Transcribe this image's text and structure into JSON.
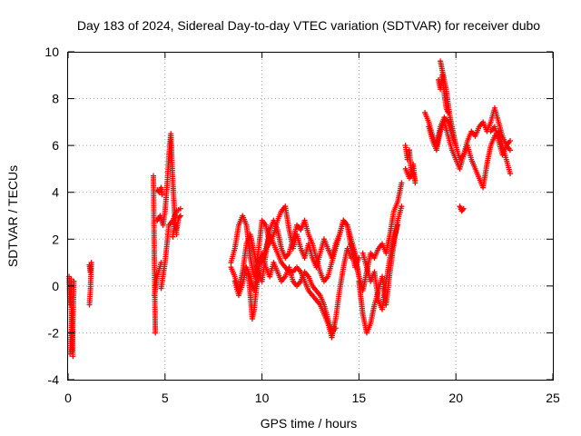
{
  "chart_data": {
    "type": "scatter",
    "title": "Day 183 of 2024, Sidereal Day-to-day VTEC variation (SDTVAR) for receiver dubo",
    "xlabel": "GPS time / hours",
    "ylabel": "SDTVAR / TECUs",
    "xlim": [
      0,
      25
    ],
    "ylim": [
      -4,
      10
    ],
    "xticks": [
      "0",
      "5",
      "10",
      "15",
      "20",
      "25"
    ],
    "yticks": [
      "-4",
      "-2",
      "0",
      "2",
      "4",
      "6",
      "8",
      "10"
    ],
    "grid": true,
    "marker": "+",
    "color": "#ff0000",
    "series": [
      {
        "name": "SDTVAR",
        "segments": [
          {
            "x": [
              0.05,
              0.1,
              0.15,
              0.2,
              0.25,
              0.3
            ],
            "y": [
              0.4,
              -0.8,
              0.3,
              -2.8,
              -1.5,
              0.2
            ]
          },
          {
            "x": [
              0.1,
              0.15,
              0.2,
              0.25
            ],
            "y": [
              -2.9,
              -2.2,
              -1.0,
              -3.0
            ]
          },
          {
            "x": [
              1.1,
              1.15,
              1.2,
              1.15,
              1.1
            ],
            "y": [
              0.9,
              0.6,
              1.0,
              -0.2,
              -0.8
            ]
          },
          {
            "x": [
              4.4,
              4.45,
              4.5
            ],
            "y": [
              4.7,
              1.2,
              -2.0
            ]
          },
          {
            "x": [
              4.45,
              4.6,
              4.8
            ],
            "y": [
              -0.4,
              0.4,
              1.0
            ]
          },
          {
            "x": [
              4.6,
              4.7,
              4.8,
              4.85
            ],
            "y": [
              4.1,
              4.0,
              4.2,
              3.9
            ]
          },
          {
            "x": [
              4.6,
              4.75,
              4.9,
              5.0,
              5.1,
              5.2,
              5.3,
              5.4,
              5.5,
              5.6
            ],
            "y": [
              2.8,
              3.0,
              2.6,
              3.2,
              4.2,
              5.6,
              6.5,
              4.5,
              3.0,
              2.2
            ]
          },
          {
            "x": [
              4.8,
              5.0,
              5.2,
              5.4,
              5.6,
              5.8
            ],
            "y": [
              -0.1,
              1.0,
              2.6,
              2.8,
              3.2,
              3.3
            ]
          },
          {
            "x": [
              5.4,
              5.5,
              5.6,
              5.7,
              5.8
            ],
            "y": [
              2.1,
              2.7,
              2.4,
              2.9,
              3.0
            ]
          },
          {
            "x": [
              8.4,
              8.6,
              8.8,
              9.0,
              9.2,
              9.4,
              9.6,
              9.8,
              10.0,
              10.2,
              10.4,
              10.6,
              10.8,
              11.0,
              11.2,
              11.4,
              11.6,
              11.8,
              12.0,
              12.2,
              12.4,
              12.6,
              12.8,
              13.0,
              13.2,
              13.4,
              13.6,
              13.8,
              14.0,
              14.2,
              14.4,
              14.6,
              14.8,
              15.0
            ],
            "y": [
              1.0,
              1.6,
              2.6,
              3.0,
              2.6,
              1.2,
              0.4,
              1.4,
              2.8,
              2.6,
              1.8,
              2.2,
              2.8,
              3.2,
              3.4,
              2.4,
              1.6,
              2.2,
              1.6,
              1.2,
              1.8,
              1.2,
              0.8,
              1.4,
              2.0,
              1.6,
              1.2,
              1.8,
              2.2,
              2.8,
              2.6,
              1.6,
              0.8,
              1.2
            ]
          },
          {
            "x": [
              8.4,
              8.6,
              8.8,
              9.0,
              9.2,
              9.4,
              9.6,
              9.8,
              10.0,
              10.2,
              10.4,
              10.6,
              10.8,
              11.0,
              11.2,
              11.4,
              11.6,
              11.8,
              12.0,
              12.2,
              12.4,
              12.6,
              12.8,
              13.0,
              13.2,
              13.4,
              13.6,
              13.8,
              14.0,
              14.2,
              14.4,
              14.6,
              14.8,
              15.0
            ],
            "y": [
              0.8,
              0.4,
              -0.2,
              0.6,
              1.8,
              2.2,
              1.4,
              0.6,
              0.2,
              1.4,
              2.4,
              2.8,
              2.4,
              1.6,
              1.2,
              1.4,
              2.0,
              2.6,
              2.4,
              2.8,
              2.2,
              1.8,
              1.2,
              0.6,
              0.2,
              0.4,
              1.0,
              1.6,
              2.2,
              2.8,
              2.6,
              2.0,
              1.4,
              0.4
            ]
          },
          {
            "x": [
              9.3,
              9.4,
              9.5,
              9.6,
              9.7,
              9.8,
              9.9,
              10.0,
              10.2,
              10.4,
              10.6,
              10.8,
              11.0,
              11.2,
              11.4,
              11.6,
              11.8,
              12.0,
              12.2,
              12.4,
              12.6,
              12.8,
              13.0,
              13.2,
              13.4,
              13.6,
              13.8,
              14.0,
              14.2,
              14.4,
              14.6
            ],
            "y": [
              0.5,
              -0.4,
              -1.4,
              -1.0,
              -0.2,
              0.4,
              1.2,
              1.0,
              1.6,
              2.2,
              1.8,
              1.4,
              1.0,
              0.8,
              0.6,
              0.6,
              0.8,
              0.6,
              0.2,
              -0.2,
              -0.4,
              -0.6,
              -0.8,
              -1.2,
              -1.6,
              -2.2,
              -1.4,
              -0.2,
              0.8,
              1.6,
              1.2
            ]
          },
          {
            "x": [
              8.6,
              8.8,
              9.0,
              9.2,
              9.4,
              9.6,
              9.8,
              10.0,
              10.2,
              10.4,
              10.6,
              10.8,
              11.0,
              11.2,
              11.4,
              11.6,
              11.8,
              12.0,
              12.2,
              12.4,
              12.6,
              12.8,
              13.0,
              13.2,
              13.4,
              13.6,
              13.8
            ],
            "y": [
              0.2,
              -0.4,
              0.1,
              0.8,
              0.4,
              -0.2,
              0.6,
              1.4,
              0.8,
              0.4,
              1.0,
              0.6,
              0.2,
              0.4,
              0.8,
              0.2,
              0.0,
              0.2,
              0.6,
              0.4,
              0.0,
              -0.2,
              -0.4,
              -0.8,
              -1.4,
              -2.0,
              -1.8
            ]
          },
          {
            "x": [
              14.6,
              14.8,
              15.0,
              15.2,
              15.4,
              15.6,
              15.8,
              16.0,
              16.2,
              16.4,
              16.6,
              16.8,
              17.0,
              17.2
            ],
            "y": [
              1.8,
              1.2,
              0.4,
              -0.2,
              0.6,
              1.4,
              1.2,
              1.6,
              1.8,
              1.4,
              2.2,
              3.2,
              3.6,
              4.4
            ]
          },
          {
            "x": [
              15.0,
              15.2,
              15.4,
              15.6,
              15.8,
              16.0,
              16.2,
              16.4,
              16.6,
              16.8,
              17.0,
              17.2
            ],
            "y": [
              0.2,
              -1.2,
              -2.0,
              -1.6,
              -0.8,
              -0.2,
              0.4,
              -0.8,
              0.6,
              1.8,
              2.8,
              3.4
            ]
          },
          {
            "x": [
              15.2,
              15.4,
              15.6,
              15.8,
              16.0,
              16.2,
              16.4,
              16.6,
              16.8,
              17.0
            ],
            "y": [
              1.4,
              0.8,
              0.2,
              0.6,
              -0.6,
              -1.0,
              0.2,
              1.2,
              2.0,
              2.6
            ]
          },
          {
            "x": [
              17.4,
              17.5,
              17.6,
              17.7,
              17.8,
              17.9
            ],
            "y": [
              6.0,
              5.4,
              5.8,
              4.8,
              5.2,
              4.4
            ]
          },
          {
            "x": [
              17.4,
              17.6,
              17.8,
              17.9
            ],
            "y": [
              5.0,
              4.6,
              4.8,
              4.5
            ]
          },
          {
            "x": [
              18.4,
              18.6,
              18.8,
              19.0,
              19.2,
              19.4,
              19.6,
              19.8,
              20.0,
              20.2,
              20.4,
              20.6,
              20.8,
              21.0,
              21.2,
              21.4,
              21.6,
              21.8,
              22.0,
              22.2,
              22.4,
              22.6,
              22.8
            ],
            "y": [
              7.4,
              7.0,
              6.4,
              6.0,
              6.8,
              7.2,
              7.0,
              6.4,
              6.0,
              5.4,
              5.6,
              6.2,
              6.6,
              6.4,
              6.8,
              7.0,
              6.6,
              7.0,
              7.6,
              7.0,
              6.4,
              6.0,
              5.8
            ]
          },
          {
            "x": [
              18.6,
              18.8,
              19.0,
              19.2,
              19.4,
              19.6,
              19.8,
              20.0,
              20.2,
              20.4,
              20.6,
              20.8,
              21.0,
              21.2,
              21.4,
              21.6,
              21.8,
              22.0,
              22.2,
              22.4,
              22.6,
              22.8
            ],
            "y": [
              6.8,
              6.2,
              5.8,
              6.6,
              7.0,
              6.4,
              5.8,
              5.4,
              5.0,
              5.6,
              6.0,
              5.4,
              5.0,
              4.6,
              4.2,
              5.2,
              6.0,
              6.4,
              6.6,
              6.0,
              5.4,
              4.8
            ]
          },
          {
            "x": [
              19.2,
              19.3,
              19.4,
              19.5,
              19.6,
              19.7,
              19.8,
              19.9,
              20.0
            ],
            "y": [
              9.6,
              9.2,
              8.8,
              8.4,
              7.8,
              7.2,
              6.8,
              6.4,
              6.0
            ]
          },
          {
            "x": [
              19.1,
              19.2,
              19.3,
              19.4,
              19.5,
              19.6
            ],
            "y": [
              8.8,
              8.4,
              9.0,
              8.2,
              7.6,
              7.4
            ]
          },
          {
            "x": [
              20.2,
              20.3,
              20.4
            ],
            "y": [
              3.4,
              3.2,
              3.3
            ]
          },
          {
            "x": [
              21.8,
              22.0,
              22.2,
              22.4,
              22.6,
              22.8
            ],
            "y": [
              6.6,
              6.8,
              6.2,
              5.6,
              6.0,
              6.2
            ]
          }
        ]
      }
    ]
  }
}
